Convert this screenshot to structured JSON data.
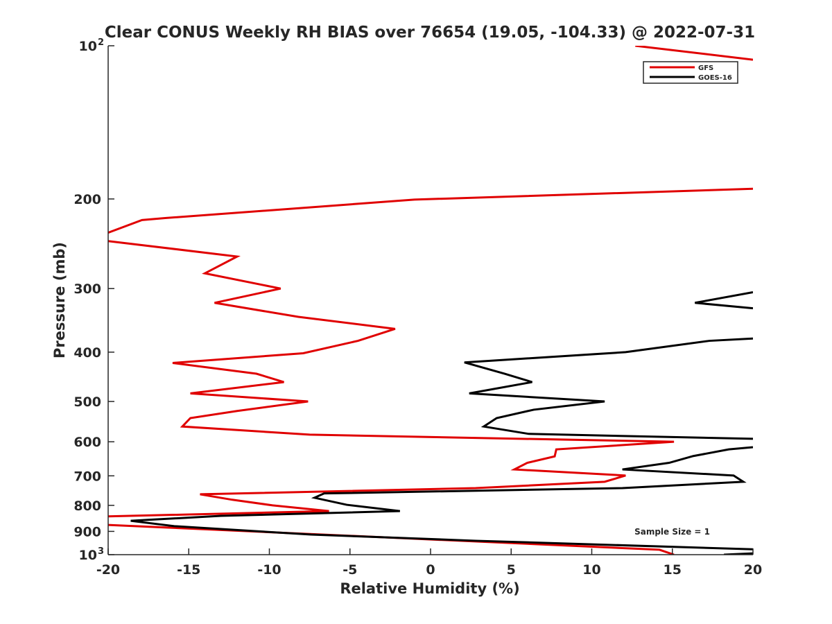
{
  "chart_data": {
    "type": "line",
    "title": "Clear CONUS Weekly RH BIAS over 76654 (19.05, -104.33) @ 2022-07-31",
    "xlabel": "Relative Humidity (%)",
    "ylabel": "Pressure (mb)",
    "xlim": [
      -20,
      20
    ],
    "ylim": [
      100,
      1000
    ],
    "yscale": "log",
    "yreversed": true,
    "grid": false,
    "x_ticks": [
      "-20",
      "-15",
      "-10",
      "-5",
      "0",
      "5",
      "10",
      "15",
      "20"
    ],
    "x_tick_values": [
      -20,
      -15,
      -10,
      -5,
      0,
      5,
      10,
      15,
      20
    ],
    "y_ticks": [
      {
        "value": 100,
        "label": "10",
        "sup": "2"
      },
      {
        "value": 200,
        "label": "200"
      },
      {
        "value": 300,
        "label": "300"
      },
      {
        "value": 400,
        "label": "400"
      },
      {
        "value": 500,
        "label": "500"
      },
      {
        "value": 600,
        "label": "600"
      },
      {
        "value": 700,
        "label": "700"
      },
      {
        "value": 800,
        "label": "800"
      },
      {
        "value": 900,
        "label": "900"
      },
      {
        "value": 1000,
        "label": "10",
        "sup": "3"
      }
    ],
    "legend_position": "top-right",
    "annotation": "Sample Size = 1",
    "series": [
      {
        "name": "GFS",
        "color": "#e00000",
        "segments": [
          [
            [
              12.7,
              100
            ],
            [
              20,
              106.5
            ]
          ],
          [
            [
              20,
              191
            ],
            [
              -1.0,
              200.6
            ],
            [
              -16.4,
              218
            ],
            [
              -17.9,
              220
            ],
            [
              -20,
              233
            ]
          ],
          [
            [
              -20,
              242
            ],
            [
              -12,
              259.5
            ],
            [
              -14,
              280
            ],
            [
              -9.3,
              300
            ],
            [
              -13.4,
              320
            ],
            [
              -8.2,
              341
            ],
            [
              -2.2,
              360
            ],
            [
              -4.5,
              380
            ],
            [
              -7.9,
              402
            ],
            [
              -16,
              420
            ],
            [
              -10.8,
              441
            ],
            [
              -9.1,
              458
            ],
            [
              -14.9,
              482
            ],
            [
              -7.6,
              500
            ],
            [
              -12,
              522
            ],
            [
              -14.9,
              539
            ],
            [
              -15.4,
              560
            ],
            [
              -7.5,
              581
            ],
            [
              15.1,
              600
            ],
            [
              7.8,
              621
            ],
            [
              7.7,
              641
            ],
            [
              6,
              660
            ],
            [
              5.2,
              680
            ],
            [
              12.1,
              699
            ],
            [
              10.8,
              719
            ],
            [
              2.8,
              740
            ],
            [
              -14.3,
              761
            ],
            [
              -12.3,
              780
            ],
            [
              -9.8,
              800
            ],
            [
              -6.3,
              821
            ],
            [
              -20,
              841
            ]
          ],
          [
            [
              -20,
              874
            ],
            [
              14.2,
              978
            ],
            [
              15.1,
              1000
            ]
          ]
        ]
      },
      {
        "name": "GOES-16",
        "color": "#000000",
        "segments": [
          [
            [
              20,
              305
            ],
            [
              16.4,
              320
            ],
            [
              20,
              328
            ]
          ],
          [
            [
              20,
              376
            ],
            [
              17.3,
              380
            ],
            [
              12.1,
              400
            ],
            [
              2.1,
              419
            ],
            [
              4.6,
              441
            ],
            [
              6.3,
              458
            ],
            [
              2.4,
              482
            ],
            [
              10.8,
              500
            ],
            [
              6.4,
              519
            ],
            [
              4.1,
              539
            ],
            [
              3.3,
              560
            ],
            [
              6.1,
              579
            ],
            [
              20,
              592
            ]
          ],
          [
            [
              20,
              615
            ],
            [
              18.5,
              621
            ],
            [
              16.3,
              640
            ],
            [
              14.8,
              660
            ],
            [
              11.9,
              680
            ],
            [
              18.8,
              699
            ],
            [
              19.4,
              719
            ],
            [
              11.9,
              740
            ],
            [
              -6.6,
              758
            ],
            [
              -7.2,
              773
            ],
            [
              -5.2,
              798
            ],
            [
              -1.9,
              821
            ],
            [
              -13,
              839
            ],
            [
              -18.6,
              858
            ],
            [
              -15.9,
              879
            ],
            [
              -7.4,
              913
            ],
            [
              2.8,
              939
            ],
            [
              20,
              976
            ]
          ],
          [
            [
              20,
              994
            ],
            [
              18.2,
              1000
            ]
          ]
        ]
      }
    ]
  }
}
